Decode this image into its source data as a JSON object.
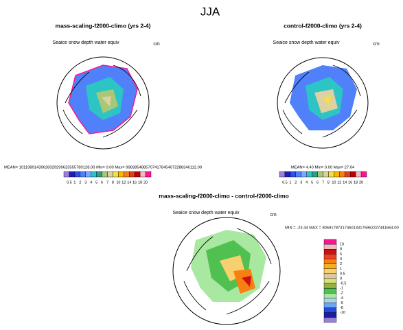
{
  "season": "JJA",
  "panels": [
    {
      "title": "mass-scaling-f2000-climo (yrs 2-4)",
      "variable": "Seaice snow depth water equiv",
      "units": "cm",
      "stats": "MEAN= 10119891439626029299623555780128.00  Min=  0.00  Max= 99838548857074178454072288346112.00"
    },
    {
      "title": "control-f2000-climo (yrs 2-4)",
      "variable": "Seaice snow depth water equiv",
      "units": "cm",
      "stats": "MEAN=  4.40  Min=  0.00  Max= 27.04"
    },
    {
      "title": "mass-scaling-f2000-climo - control-f2000-climo",
      "variable": "Seaice snow depth water equiv",
      "units": "cm",
      "stats": "MIN = -23.44  MAX = 80591787317460133175962227441664.00"
    }
  ],
  "colorbar": {
    "labels": [
      "0.5",
      "1",
      "2",
      "3",
      "4",
      "5",
      "6",
      "7",
      "8",
      "10",
      "12",
      "14",
      "16",
      "18",
      "20"
    ],
    "colors": [
      "#9a80d8",
      "#1c1cc8",
      "#2f4fe6",
      "#5080fa",
      "#78aaff",
      "#2cc4c4",
      "#2aa088",
      "#a8c878",
      "#ded0a0",
      "#f0e050",
      "#f8b800",
      "#f08020",
      "#e04020",
      "#c00000",
      "#f4b8c4",
      "#ff1493"
    ]
  },
  "diff_colorbar": {
    "labels": [
      "10",
      "8",
      "6",
      "4",
      "2",
      "1",
      "0.5",
      "0",
      "-0.5",
      "-1",
      "-2",
      "-4",
      "-6",
      "-8",
      "-10"
    ],
    "colors": [
      "#ff1493",
      "#f4b8c4",
      "#d01010",
      "#f04020",
      "#f88010",
      "#f8b020",
      "#f8d070",
      "#e0c8a0",
      "#d8e080",
      "#98b040",
      "#50c050",
      "#a8e8a0",
      "#a8d8e8",
      "#6aa8f0",
      "#2848e0",
      "#1c1ca0",
      "#9a80d8"
    ]
  }
}
